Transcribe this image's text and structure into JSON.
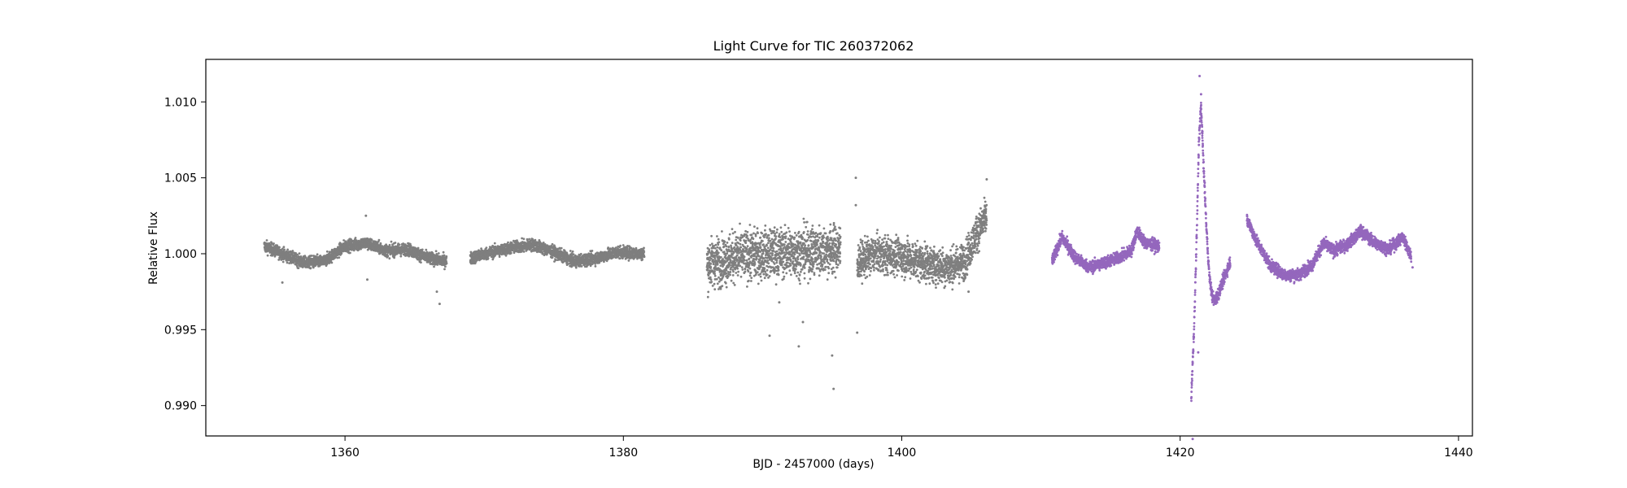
{
  "chart_data": {
    "type": "scatter",
    "title": "Light Curve for TIC 260372062",
    "xlabel": "BJD - 2457000 (days)",
    "ylabel": "Relative Flux",
    "xlim": [
      1350,
      1441
    ],
    "ylim": [
      0.988,
      1.0128
    ],
    "xticks": [
      1360,
      1380,
      1400,
      1420,
      1440
    ],
    "xtick_labels": [
      "1360",
      "1380",
      "1400",
      "1420",
      "1440"
    ],
    "yticks": [
      0.99,
      0.995,
      1.0,
      1.005,
      1.01
    ],
    "ytick_labels": [
      "0.990",
      "0.995",
      "1.000",
      "1.005",
      "1.010"
    ],
    "grid": false,
    "legend": "none",
    "series": [
      {
        "color": "#7f7f7f",
        "segments": [
          {
            "x": [
              1354.2,
              1355.5,
              1357.0,
              1358.5,
              1360.0,
              1361.5,
              1363.0,
              1364.5,
              1366.0,
              1367.3
            ],
            "y": [
              1.0005,
              1.0,
              0.9994,
              0.9995,
              1.0005,
              1.0007,
              1.0002,
              1.0003,
              0.9997,
              0.9995
            ],
            "scatter": 0.0004
          },
          {
            "x": [
              1369.0,
              1370.5,
              1372.0,
              1373.5,
              1375.0,
              1376.5,
              1378.0,
              1379.5,
              1381.5
            ],
            "y": [
              0.9997,
              1.0001,
              1.0004,
              1.0006,
              1.0001,
              0.9995,
              0.9997,
              1.0001,
              1.0
            ],
            "scatter": 0.0004
          },
          {
            "x": [
              1386.0,
              1388.0,
              1390.0,
              1392.0,
              1394.0,
              1395.6
            ],
            "y": [
              0.9993,
              0.9998,
              1.0,
              1.0001,
              1.0002,
              1.0003
            ],
            "scatter": 0.0016
          },
          {
            "x": [
              1396.8,
              1398.0,
              1400.0,
              1402.0,
              1403.5,
              1404.5,
              1405.3,
              1406.1
            ],
            "y": [
              0.9994,
              1.0,
              0.9998,
              0.9993,
              0.9991,
              0.9995,
              1.0012,
              1.0025
            ],
            "scatter": 0.0012
          }
        ],
        "outliers": [
          {
            "x": 1355.5,
            "y": 0.9981
          },
          {
            "x": 1361.6,
            "y": 0.9983
          },
          {
            "x": 1361.5,
            "y": 1.0025
          },
          {
            "x": 1366.8,
            "y": 0.9967
          },
          {
            "x": 1366.6,
            "y": 0.9975
          },
          {
            "x": 1390.5,
            "y": 0.9946
          },
          {
            "x": 1391.2,
            "y": 0.9968
          },
          {
            "x": 1392.6,
            "y": 0.9939
          },
          {
            "x": 1392.9,
            "y": 0.9955
          },
          {
            "x": 1395.0,
            "y": 0.9933
          },
          {
            "x": 1395.1,
            "y": 0.9911
          },
          {
            "x": 1396.7,
            "y": 1.005
          },
          {
            "x": 1396.8,
            "y": 0.9948
          },
          {
            "x": 1396.7,
            "y": 1.0032
          },
          {
            "x": 1404.8,
            "y": 0.9975
          },
          {
            "x": 1406.1,
            "y": 1.0049
          }
        ]
      },
      {
        "color": "#9467bd",
        "segments": [
          {
            "x": [
              1410.8,
              1411.5,
              1412.5,
              1413.5,
              1414.5,
              1415.5,
              1416.5,
              1416.9,
              1417.5,
              1418.5
            ],
            "y": [
              0.9995,
              1.0011,
              0.9997,
              0.9991,
              0.9994,
              0.9997,
              1.0002,
              1.0015,
              1.0007,
              1.0005
            ],
            "scatter": 0.0004
          },
          {
            "x": [
              1420.8,
              1421.0,
              1421.2,
              1421.35,
              1421.5,
              1421.7,
              1421.9,
              1422.1,
              1422.3,
              1422.5,
              1422.8,
              1423.2,
              1423.6
            ],
            "y": [
              0.9905,
              0.995,
              1.0015,
              1.0075,
              1.0098,
              1.0055,
              1.0015,
              0.9985,
              0.9972,
              0.9969,
              0.9975,
              0.9985,
              0.9995
            ],
            "scatter": 0.0004
          },
          {
            "x": [
              1424.8,
              1425.5,
              1426.5,
              1427.5,
              1428.5,
              1429.5,
              1430.3,
              1431.0,
              1432.0,
              1433.0,
              1434.0,
              1435.0,
              1436.0,
              1436.6
            ],
            "y": [
              1.0023,
              1.0008,
              0.9992,
              0.9986,
              0.9986,
              0.9993,
              1.0007,
              1.0002,
              1.0006,
              1.0015,
              1.0007,
              1.0003,
              1.0011,
              0.9998
            ],
            "scatter": 0.0004
          }
        ],
        "outliers": [
          {
            "x": 1421.4,
            "y": 1.0117
          },
          {
            "x": 1420.9,
            "y": 0.9878
          },
          {
            "x": 1421.5,
            "y": 1.0105
          },
          {
            "x": 1421.3,
            "y": 0.9935
          },
          {
            "x": 1436.7,
            "y": 0.9991
          }
        ]
      }
    ]
  }
}
